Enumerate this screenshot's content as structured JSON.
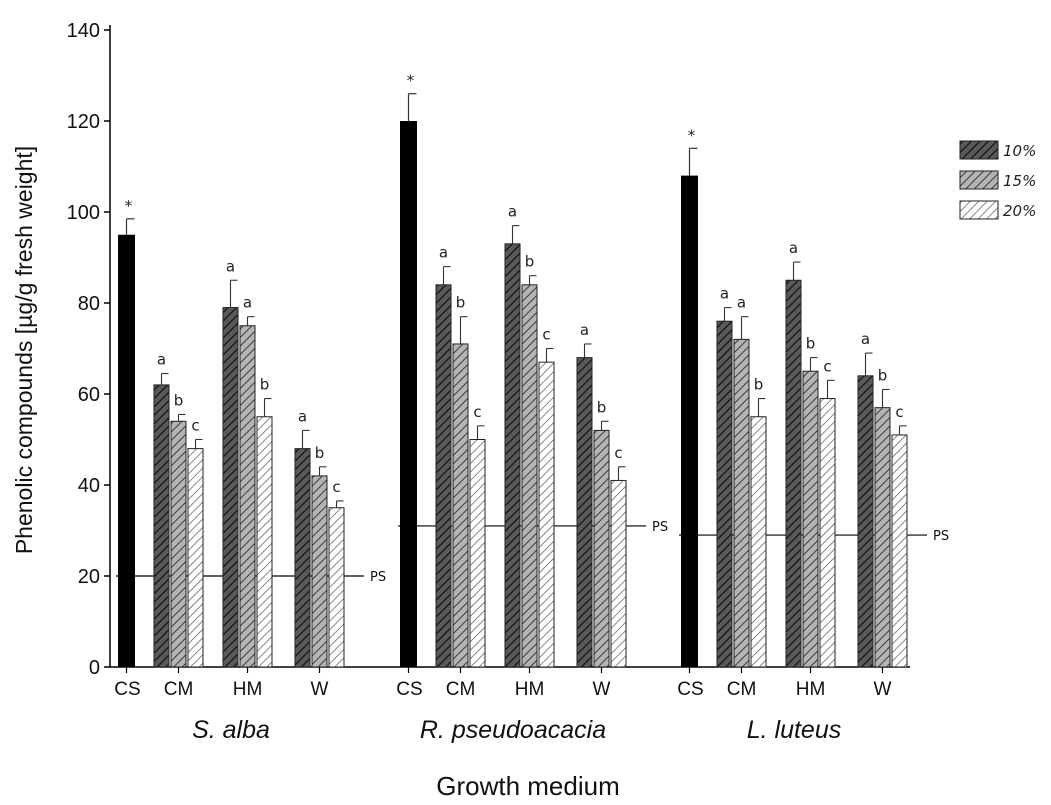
{
  "chart_data": {
    "type": "bar",
    "ylabel": "Phenolic compounds [µg/g fresh weight]",
    "xlabel": "Growth medium",
    "ylim": [
      0,
      140
    ],
    "yticks": [
      0,
      20,
      40,
      60,
      80,
      100,
      120,
      140
    ],
    "legend_position": "top-right",
    "series": [
      {
        "name": "10%",
        "pattern": "dense-hatch"
      },
      {
        "name": "15%",
        "pattern": "medium-hatch"
      },
      {
        "name": "20%",
        "pattern": "light-hatch"
      }
    ],
    "control_color": "#000000",
    "ps_label": "PS",
    "species": [
      {
        "name": "S. alba",
        "control": {
          "label": "CS",
          "value": 95,
          "err": 3.5,
          "sig": "*"
        },
        "ps": 20,
        "groups": [
          {
            "label": "CM",
            "values": [
              62,
              54,
              48
            ],
            "errs": [
              2.5,
              1.5,
              2
            ],
            "sig": [
              "a",
              "b",
              "c"
            ]
          },
          {
            "label": "HM",
            "values": [
              79,
              75,
              55
            ],
            "errs": [
              6,
              2,
              4
            ],
            "sig": [
              "a",
              "a",
              "b"
            ]
          },
          {
            "label": "W",
            "values": [
              48,
              42,
              35
            ],
            "errs": [
              4,
              2,
              1.5
            ],
            "sig": [
              "a",
              "b",
              "c"
            ]
          }
        ]
      },
      {
        "name": "R. pseudoacacia",
        "control": {
          "label": "CS",
          "value": 120,
          "err": 6,
          "sig": "*"
        },
        "ps": 31,
        "groups": [
          {
            "label": "CM",
            "values": [
              84,
              71,
              50
            ],
            "errs": [
              4,
              6,
              3
            ],
            "sig": [
              "a",
              "b",
              "c"
            ]
          },
          {
            "label": "HM",
            "values": [
              93,
              84,
              67
            ],
            "errs": [
              4,
              2,
              3
            ],
            "sig": [
              "a",
              "b",
              "c"
            ]
          },
          {
            "label": "W",
            "values": [
              68,
              52,
              41
            ],
            "errs": [
              3,
              2,
              3
            ],
            "sig": [
              "a",
              "b",
              "c"
            ]
          }
        ]
      },
      {
        "name": "L. luteus",
        "control": {
          "label": "CS",
          "value": 108,
          "err": 6,
          "sig": "*"
        },
        "ps": 29,
        "groups": [
          {
            "label": "CM",
            "values": [
              76,
              72,
              55
            ],
            "errs": [
              3,
              5,
              4
            ],
            "sig": [
              "a",
              "a",
              "b"
            ]
          },
          {
            "label": "HM",
            "values": [
              85,
              65,
              59
            ],
            "errs": [
              4,
              3,
              4
            ],
            "sig": [
              "a",
              "b",
              "c"
            ]
          },
          {
            "label": "W",
            "values": [
              64,
              57,
              51
            ],
            "errs": [
              5,
              4,
              2
            ],
            "sig": [
              "a",
              "b",
              "c"
            ]
          }
        ]
      }
    ]
  }
}
